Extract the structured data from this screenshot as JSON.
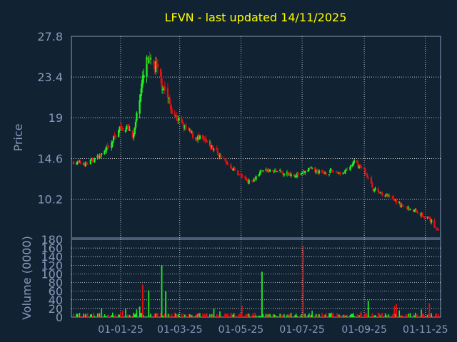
{
  "chart_data": [
    {
      "type": "candlestick",
      "title": "LFVN - last updated 14/11/2025",
      "ylabel": "Price",
      "ylim": [
        6,
        27.8
      ],
      "yticks": [
        "27.8",
        "23.4",
        "19",
        "14.6",
        "10.2"
      ],
      "xticks": [
        "01-01-25",
        "01-03-25",
        "01-05-25",
        "01-07-25",
        "01-09-25",
        "01-11-25"
      ],
      "grid": true,
      "colors": {
        "up": "#22ee22",
        "down": "#dd1111",
        "title": "#ffff00",
        "axis_text": "#8899bb",
        "grid": "#ffffff"
      },
      "trend": [
        {
          "date": "2024-11-15",
          "price": 14.2
        },
        {
          "date": "2024-11-28",
          "price": 14.0
        },
        {
          "date": "2024-12-10",
          "price": 14.8
        },
        {
          "date": "2024-12-20",
          "price": 15.6
        },
        {
          "date": "2024-12-30",
          "price": 17.8
        },
        {
          "date": "2025-01-08",
          "price": 18.0
        },
        {
          "date": "2025-01-14",
          "price": 17.0
        },
        {
          "date": "2025-01-20",
          "price": 21.5
        },
        {
          "date": "2025-01-27",
          "price": 25.0
        },
        {
          "date": "2025-02-05",
          "price": 24.5
        },
        {
          "date": "2025-02-14",
          "price": 22.0
        },
        {
          "date": "2025-02-22",
          "price": 19.5
        },
        {
          "date": "2025-03-05",
          "price": 18.0
        },
        {
          "date": "2025-03-15",
          "price": 17.0
        },
        {
          "date": "2025-03-25",
          "price": 16.5
        },
        {
          "date": "2025-04-05",
          "price": 15.5
        },
        {
          "date": "2025-04-15",
          "price": 14.3
        },
        {
          "date": "2025-04-28",
          "price": 13.0
        },
        {
          "date": "2025-05-10",
          "price": 12.0
        },
        {
          "date": "2025-05-22",
          "price": 13.3
        },
        {
          "date": "2025-06-05",
          "price": 13.2
        },
        {
          "date": "2025-06-20",
          "price": 12.9
        },
        {
          "date": "2025-06-30",
          "price": 12.8
        },
        {
          "date": "2025-07-08",
          "price": 13.5
        },
        {
          "date": "2025-07-20",
          "price": 13.0
        },
        {
          "date": "2025-08-01",
          "price": 13.2
        },
        {
          "date": "2025-08-12",
          "price": 13.0
        },
        {
          "date": "2025-08-22",
          "price": 14.2
        },
        {
          "date": "2025-09-01",
          "price": 13.3
        },
        {
          "date": "2025-09-10",
          "price": 11.3
        },
        {
          "date": "2025-09-25",
          "price": 10.5
        },
        {
          "date": "2025-10-10",
          "price": 9.4
        },
        {
          "date": "2025-10-25",
          "price": 8.8
        },
        {
          "date": "2025-11-05",
          "price": 8.0
        },
        {
          "date": "2025-11-14",
          "price": 6.8
        }
      ]
    },
    {
      "type": "bar",
      "ylabel": "Volume (0000)",
      "ylim": [
        0,
        180
      ],
      "yticks": [
        "180",
        "160",
        "140",
        "120",
        "100",
        "80",
        "60",
        "40",
        "20",
        "0"
      ],
      "baseline_volume": 8,
      "spikes": [
        {
          "date": "2025-01-23",
          "value": 75,
          "color": "#dd1111"
        },
        {
          "date": "2025-01-29",
          "value": 62,
          "color": "#22ee22"
        },
        {
          "date": "2025-02-11",
          "value": 120,
          "color": "#22ee22"
        },
        {
          "date": "2025-02-15",
          "value": 60,
          "color": "#22ee22"
        },
        {
          "date": "2025-05-22",
          "value": 105,
          "color": "#22ee22"
        },
        {
          "date": "2025-07-02",
          "value": 165,
          "color": "#dd1111"
        },
        {
          "date": "2025-09-05",
          "value": 38,
          "color": "#22ee22"
        },
        {
          "date": "2025-10-03",
          "value": 30,
          "color": "#dd1111"
        },
        {
          "date": "2025-11-05",
          "value": 32,
          "color": "#dd1111"
        }
      ]
    }
  ]
}
